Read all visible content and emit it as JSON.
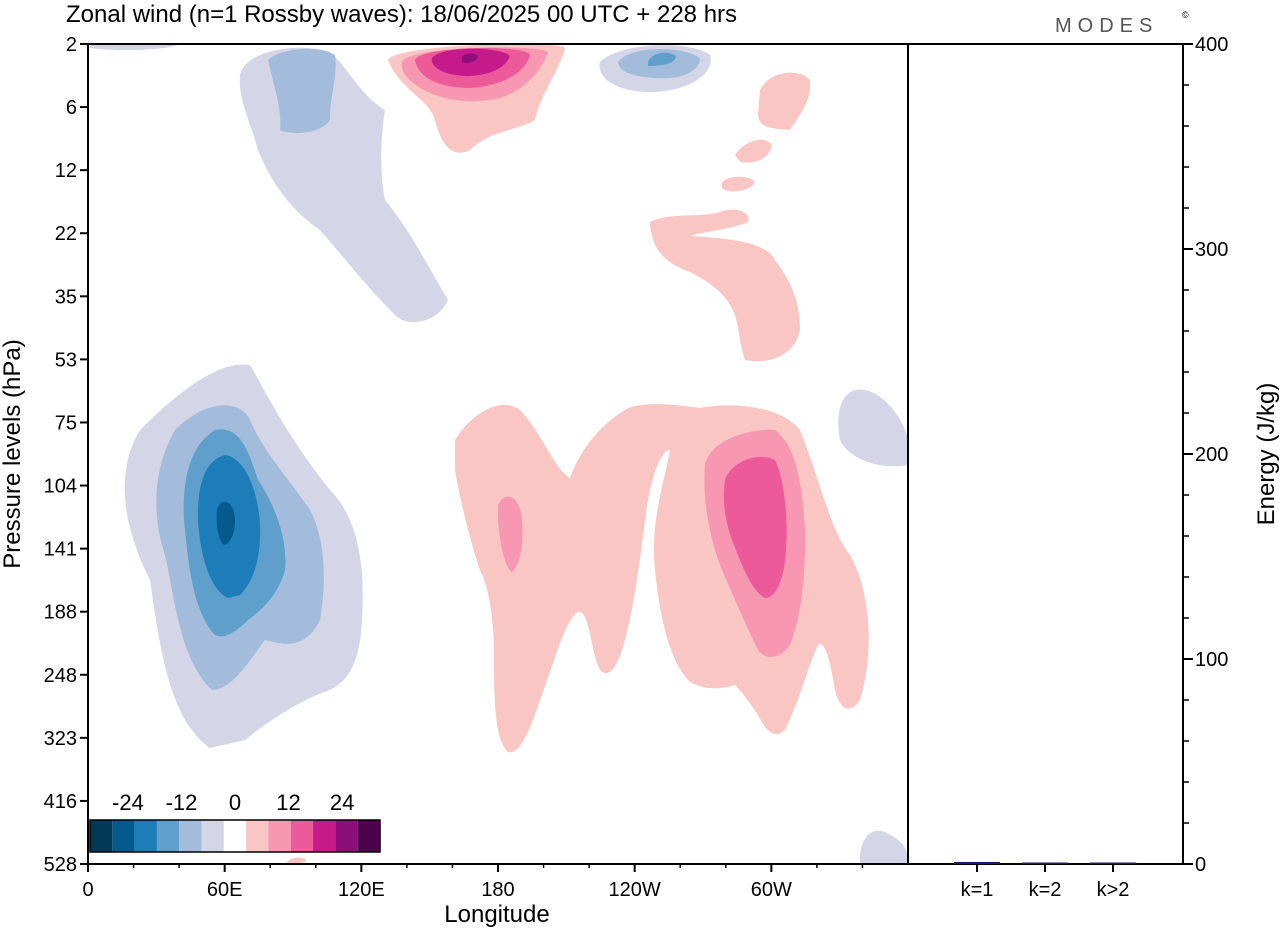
{
  "title": "Zonal wind (n=1 Rossby waves):  18/06/2025  00 UTC  + 228 hrs",
  "brand": "MODES",
  "brand_mark": "©",
  "chart_data": [
    {
      "type": "heatmap",
      "title": "Zonal wind (n=1 Rossby waves):  18/06/2025  00 UTC  + 228 hrs",
      "xlabel": "Longitude",
      "ylabel": "Pressure levels (hPa)",
      "x_ticks": [
        "0",
        "60E",
        "120E",
        "180",
        "120W",
        "60W"
      ],
      "x_tick_degrees": [
        0,
        60,
        120,
        180,
        240,
        300
      ],
      "xlim": [
        0,
        360
      ],
      "y_ticks": [
        "2",
        "6",
        "12",
        "22",
        "35",
        "53",
        "75",
        "104",
        "141",
        "188",
        "248",
        "323",
        "416",
        "528"
      ],
      "colorbar": {
        "tick_labels": [
          "-24",
          "-12",
          "0",
          "12",
          "24"
        ],
        "levels": [
          -30,
          -25,
          -20,
          -15,
          -10,
          -5,
          5,
          10,
          15,
          20,
          25,
          30
        ],
        "colors": [
          "#023858",
          "#045a8d",
          "#1c7db8",
          "#5f9fcb",
          "#a3bcdb",
          "#d4d6e8",
          "#ffffff",
          "#f9c6c4",
          "#f797b2",
          "#ec5a9a",
          "#c51b8a",
          "#8e0e79",
          "#4d004b"
        ]
      },
      "regions": [
        {
          "name": "",
          "lon": 60,
          "level_index": 7.3,
          "value": -24
        },
        {
          "name": "",
          "lon": 165,
          "level_index": 0.2,
          "value": 24
        },
        {
          "name": "",
          "lon": 125,
          "level_index": 0.2,
          "value": -12
        },
        {
          "name": "",
          "lon": 300,
          "level_index": 7.7,
          "value": 12
        },
        {
          "name": "",
          "lon": 185,
          "level_index": 7.7,
          "value": 6
        }
      ]
    },
    {
      "type": "bar",
      "ylabel": "Energy (J/kg)",
      "ylim": [
        0,
        400
      ],
      "y_ticks": [
        "0",
        "100",
        "200",
        "300",
        "400"
      ],
      "categories": [
        "k=1",
        "k=2",
        "k>2"
      ],
      "values": [
        1.0,
        0.3,
        0.4
      ],
      "bar_color": "#1a1a6e"
    }
  ]
}
